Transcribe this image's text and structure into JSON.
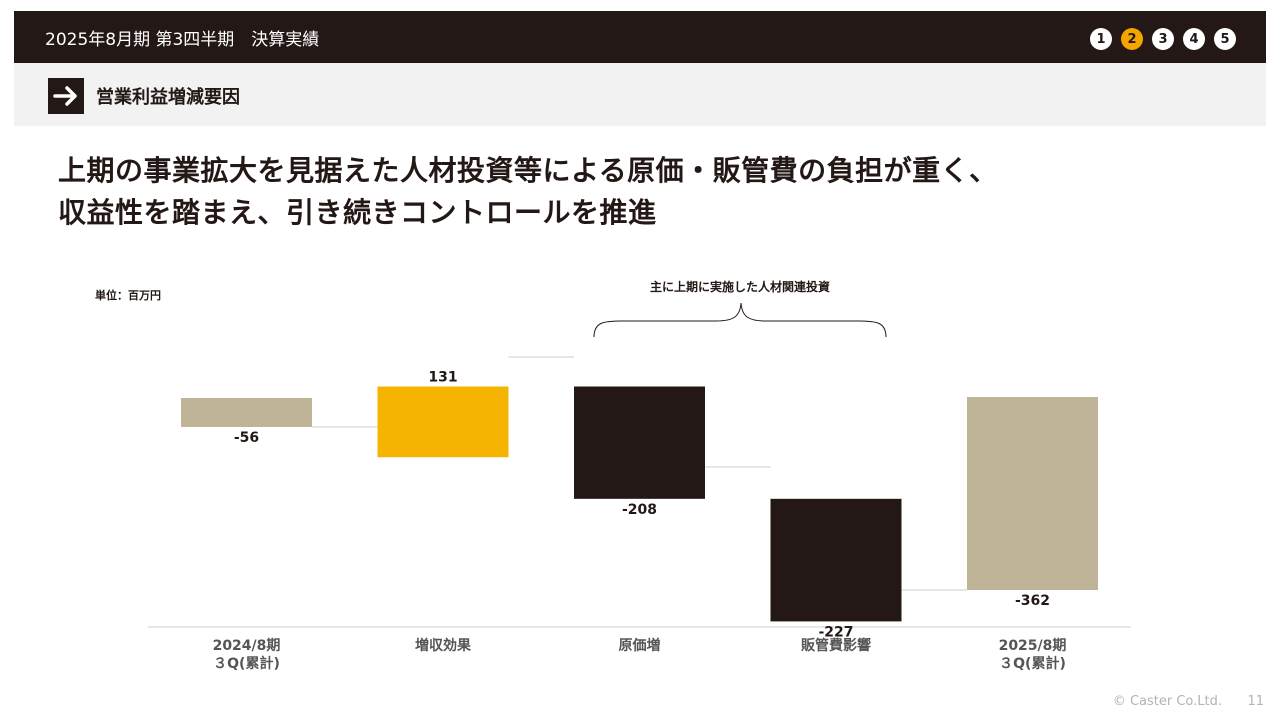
{
  "header": {
    "title": "2025年8月期 第3四半期　決算実績",
    "steps": [
      "1",
      "2",
      "3",
      "4",
      "5"
    ],
    "active_step": 2
  },
  "section": {
    "label": "営業利益増減要因"
  },
  "headline": {
    "line1": "上期の事業拡大を見据えた人材投資等による原価・販管費の負担が重く、",
    "line2": "収益性を踏まえ、引き続きコントロールを推進"
  },
  "chart_data": {
    "type": "bar",
    "subtype": "waterfall",
    "unit_label": "単位：百万円",
    "annotation": "主に上期に実施した人材関連投資",
    "categories": [
      "2024/8期\n３Q(累計)",
      "増収効果",
      "原価増",
      "販管費影響",
      "2025/8期\n３Q(累計)"
    ],
    "values": [
      -56,
      131,
      -208,
      -227,
      -362
    ],
    "kinds": [
      "total",
      "delta",
      "delta",
      "delta",
      "total"
    ],
    "data_labels": [
      "-56",
      "131",
      "-208",
      "-227",
      "-362"
    ],
    "colors": {
      "total": "#c0b498",
      "increase": "#f5b400",
      "decrease": "#231815",
      "connector": "#cccccc",
      "baseline": "#cccccc"
    }
  },
  "footer": {
    "copyright": "© Caster Co.Ltd.",
    "page": "11"
  },
  "colors": {
    "accent": "#f5a500",
    "dark": "#231815"
  }
}
